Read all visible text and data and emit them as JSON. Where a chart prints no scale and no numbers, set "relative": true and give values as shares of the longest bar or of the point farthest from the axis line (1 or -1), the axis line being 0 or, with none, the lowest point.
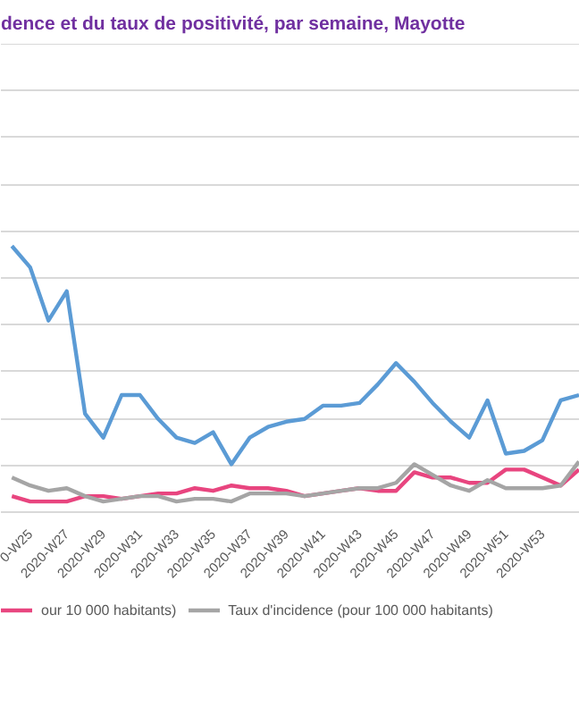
{
  "chart_data": {
    "type": "line",
    "title": "dence et du taux de positivité, par semaine, Mayotte",
    "relative": true,
    "grid": "y",
    "legend": "bottom",
    "line_style": "solid",
    "marker": "none",
    "categories": [
      null,
      "0-W25",
      null,
      "2020-W27",
      null,
      "2020-W29",
      null,
      "2020-W31",
      null,
      "2020-W33",
      null,
      "2020-W35",
      null,
      "2020-W37",
      null,
      "2020-W39",
      null,
      "2020-W41",
      null,
      "2020-W43",
      null,
      "2020-W45",
      null,
      "2020-W47",
      null,
      "2020-W49",
      null,
      "2020-W51",
      null,
      "2020-W53",
      null,
      null
    ],
    "series": [
      {
        "name": null,
        "color": "#5b9bd5",
        "values": [
          1.0,
          0.92,
          0.72,
          0.83,
          0.37,
          0.28,
          0.44,
          0.44,
          0.35,
          0.28,
          0.26,
          0.3,
          0.18,
          0.28,
          0.32,
          0.34,
          0.35,
          0.4,
          0.4,
          0.41,
          0.48,
          0.56,
          0.49,
          0.41,
          0.34,
          0.28,
          0.42,
          0.22,
          0.23,
          0.27,
          0.42,
          0.44
        ]
      },
      {
        "name": "our 10 000 habitants)",
        "color": "#e8457f",
        "values": [
          0.06,
          0.04,
          0.04,
          0.04,
          0.06,
          0.06,
          0.05,
          0.06,
          0.07,
          0.07,
          0.09,
          0.08,
          0.1,
          0.09,
          0.09,
          0.08,
          0.06,
          0.07,
          0.08,
          0.09,
          0.08,
          0.08,
          0.15,
          0.13,
          0.13,
          0.11,
          0.11,
          0.16,
          0.16,
          0.13,
          0.1,
          0.16
        ]
      },
      {
        "name": "Taux d'incidence (pour 100 000 habitants)",
        "color": "#a5a5a5",
        "values": [
          0.13,
          0.1,
          0.08,
          0.09,
          0.06,
          0.04,
          0.05,
          0.06,
          0.06,
          0.04,
          0.05,
          0.05,
          0.04,
          0.07,
          0.07,
          0.07,
          0.06,
          0.07,
          0.08,
          0.09,
          0.09,
          0.11,
          0.18,
          0.14,
          0.1,
          0.08,
          0.12,
          0.09,
          0.09,
          0.09,
          0.1,
          0.19
        ]
      }
    ]
  }
}
